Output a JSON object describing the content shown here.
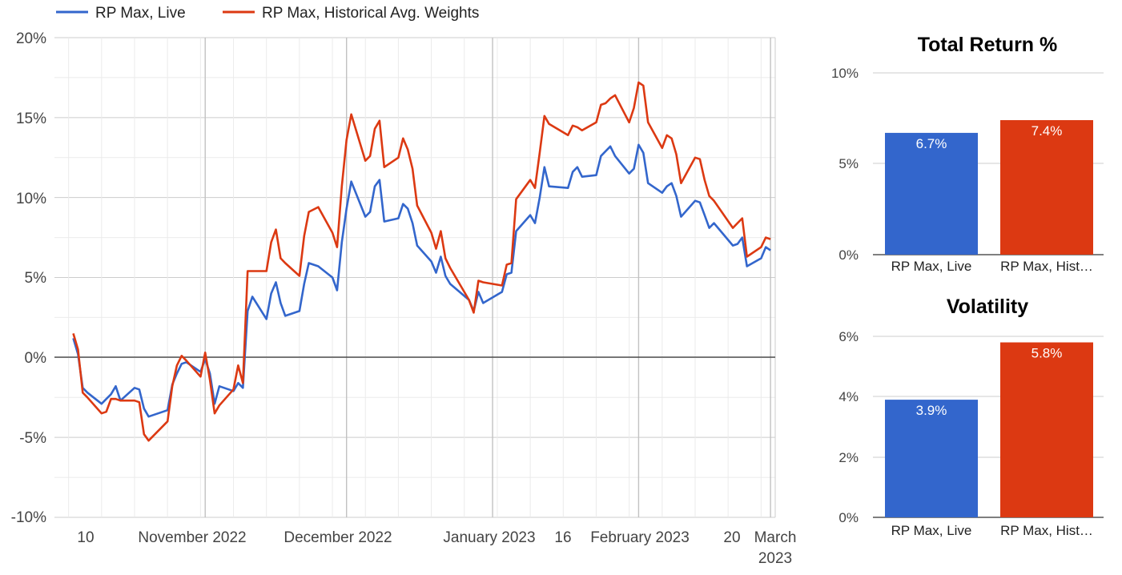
{
  "chart_data": [
    {
      "type": "line",
      "legend_position": "top-left",
      "x_tick_labels": [
        "10",
        "November 2022",
        "December 2022",
        "January 2023",
        "16",
        "February 2023",
        "20",
        "March",
        "2023"
      ],
      "y_tick_labels": [
        "20%",
        "15%",
        "10%",
        "5%",
        "0%",
        "-5%",
        "-10%"
      ],
      "ylim": [
        -10,
        20
      ],
      "grid": true,
      "series": [
        {
          "name": "RP Max, Live",
          "color": "#3366cc",
          "points": [
            [
              "2022-10-04",
              1.2
            ],
            [
              "2022-10-05",
              0.2
            ],
            [
              "2022-10-06",
              -1.9
            ],
            [
              "2022-10-07",
              -2.2
            ],
            [
              "2022-10-10",
              -2.9
            ],
            [
              "2022-10-11",
              -2.6
            ],
            [
              "2022-10-12",
              -2.3
            ],
            [
              "2022-10-13",
              -1.8
            ],
            [
              "2022-10-14",
              -2.7
            ],
            [
              "2022-10-17",
              -1.9
            ],
            [
              "2022-10-18",
              -2.0
            ],
            [
              "2022-10-19",
              -3.2
            ],
            [
              "2022-10-20",
              -3.7
            ],
            [
              "2022-10-24",
              -3.3
            ],
            [
              "2022-10-25",
              -1.7
            ],
            [
              "2022-10-26",
              -1.0
            ],
            [
              "2022-10-27",
              -0.4
            ],
            [
              "2022-10-28",
              -0.3
            ],
            [
              "2022-10-31",
              -0.9
            ],
            [
              "2022-11-01",
              -0.1
            ],
            [
              "2022-11-02",
              -1.0
            ],
            [
              "2022-11-03",
              -2.9
            ],
            [
              "2022-11-04",
              -1.8
            ],
            [
              "2022-11-07",
              -2.1
            ],
            [
              "2022-11-08",
              -1.6
            ],
            [
              "2022-11-09",
              -1.9
            ],
            [
              "2022-11-10",
              2.9
            ],
            [
              "2022-11-11",
              3.8
            ],
            [
              "2022-11-14",
              2.4
            ],
            [
              "2022-11-15",
              4.0
            ],
            [
              "2022-11-16",
              4.7
            ],
            [
              "2022-11-17",
              3.4
            ],
            [
              "2022-11-18",
              2.6
            ],
            [
              "2022-11-21",
              2.9
            ],
            [
              "2022-11-22",
              4.6
            ],
            [
              "2022-11-23",
              5.9
            ],
            [
              "2022-11-25",
              5.7
            ],
            [
              "2022-11-28",
              5.0
            ],
            [
              "2022-11-29",
              4.2
            ],
            [
              "2022-11-30",
              7.2
            ],
            [
              "2022-12-01",
              9.3
            ],
            [
              "2022-12-02",
              11.0
            ],
            [
              "2022-12-05",
              8.8
            ],
            [
              "2022-12-06",
              9.1
            ],
            [
              "2022-12-07",
              10.7
            ],
            [
              "2022-12-08",
              11.1
            ],
            [
              "2022-12-09",
              8.5
            ],
            [
              "2022-12-12",
              8.7
            ],
            [
              "2022-12-13",
              9.6
            ],
            [
              "2022-12-14",
              9.3
            ],
            [
              "2022-12-15",
              8.4
            ],
            [
              "2022-12-16",
              7.0
            ],
            [
              "2022-12-19",
              6.0
            ],
            [
              "2022-12-20",
              5.3
            ],
            [
              "2022-12-21",
              6.3
            ],
            [
              "2022-12-22",
              5.1
            ],
            [
              "2022-12-23",
              4.6
            ],
            [
              "2022-12-27",
              3.6
            ],
            [
              "2022-12-28",
              2.9
            ],
            [
              "2022-12-29",
              4.1
            ],
            [
              "2022-12-30",
              3.4
            ],
            [
              "2023-01-03",
              4.1
            ],
            [
              "2023-01-04",
              5.2
            ],
            [
              "2023-01-05",
              5.3
            ],
            [
              "2023-01-06",
              7.9
            ],
            [
              "2023-01-09",
              8.9
            ],
            [
              "2023-01-10",
              8.4
            ],
            [
              "2023-01-11",
              10.0
            ],
            [
              "2023-01-12",
              11.9
            ],
            [
              "2023-01-13",
              10.7
            ],
            [
              "2023-01-17",
              10.6
            ],
            [
              "2023-01-18",
              11.6
            ],
            [
              "2023-01-19",
              11.9
            ],
            [
              "2023-01-20",
              11.3
            ],
            [
              "2023-01-23",
              11.4
            ],
            [
              "2023-01-24",
              12.6
            ],
            [
              "2023-01-25",
              12.9
            ],
            [
              "2023-01-26",
              13.2
            ],
            [
              "2023-01-27",
              12.6
            ],
            [
              "2023-01-30",
              11.5
            ],
            [
              "2023-01-31",
              11.8
            ],
            [
              "2023-02-01",
              13.3
            ],
            [
              "2023-02-02",
              12.8
            ],
            [
              "2023-02-03",
              10.9
            ],
            [
              "2023-02-06",
              10.3
            ],
            [
              "2023-02-07",
              10.7
            ],
            [
              "2023-02-08",
              10.9
            ],
            [
              "2023-02-09",
              10.1
            ],
            [
              "2023-02-10",
              8.8
            ],
            [
              "2023-02-13",
              9.8
            ],
            [
              "2023-02-14",
              9.7
            ],
            [
              "2023-02-15",
              8.9
            ],
            [
              "2023-02-16",
              8.1
            ],
            [
              "2023-02-17",
              8.4
            ],
            [
              "2023-02-21",
              7.0
            ],
            [
              "2023-02-22",
              7.1
            ],
            [
              "2023-02-23",
              7.5
            ],
            [
              "2023-02-24",
              5.7
            ],
            [
              "2023-02-27",
              6.2
            ],
            [
              "2023-02-28",
              6.9
            ],
            [
              "2023-03-01",
              6.7
            ]
          ]
        },
        {
          "name": "RP Max, Historical Avg. Weights",
          "color": "#dc3912",
          "points": [
            [
              "2022-10-04",
              1.5
            ],
            [
              "2022-10-05",
              0.5
            ],
            [
              "2022-10-06",
              -2.2
            ],
            [
              "2022-10-07",
              -2.5
            ],
            [
              "2022-10-10",
              -3.5
            ],
            [
              "2022-10-11",
              -3.4
            ],
            [
              "2022-10-12",
              -2.6
            ],
            [
              "2022-10-13",
              -2.6
            ],
            [
              "2022-10-14",
              -2.7
            ],
            [
              "2022-10-17",
              -2.7
            ],
            [
              "2022-10-18",
              -2.8
            ],
            [
              "2022-10-19",
              -4.8
            ],
            [
              "2022-10-20",
              -5.2
            ],
            [
              "2022-10-24",
              -4.0
            ],
            [
              "2022-10-25",
              -1.8
            ],
            [
              "2022-10-26",
              -0.5
            ],
            [
              "2022-10-27",
              0.1
            ],
            [
              "2022-10-28",
              -0.2
            ],
            [
              "2022-10-31",
              -1.2
            ],
            [
              "2022-11-01",
              0.3
            ],
            [
              "2022-11-02",
              -1.4
            ],
            [
              "2022-11-03",
              -3.5
            ],
            [
              "2022-11-04",
              -3.0
            ],
            [
              "2022-11-07",
              -2.0
            ],
            [
              "2022-11-08",
              -0.5
            ],
            [
              "2022-11-09",
              -1.6
            ],
            [
              "2022-11-10",
              5.4
            ],
            [
              "2022-11-11",
              5.4
            ],
            [
              "2022-11-14",
              5.4
            ],
            [
              "2022-11-15",
              7.2
            ],
            [
              "2022-11-16",
              8.0
            ],
            [
              "2022-11-17",
              6.2
            ],
            [
              "2022-11-18",
              5.9
            ],
            [
              "2022-11-21",
              5.1
            ],
            [
              "2022-11-22",
              7.6
            ],
            [
              "2022-11-23",
              9.1
            ],
            [
              "2022-11-25",
              9.4
            ],
            [
              "2022-11-28",
              7.8
            ],
            [
              "2022-11-29",
              6.9
            ],
            [
              "2022-11-30",
              10.7
            ],
            [
              "2022-12-01",
              13.6
            ],
            [
              "2022-12-02",
              15.2
            ],
            [
              "2022-12-05",
              12.3
            ],
            [
              "2022-12-06",
              12.6
            ],
            [
              "2022-12-07",
              14.3
            ],
            [
              "2022-12-08",
              14.8
            ],
            [
              "2022-12-09",
              11.9
            ],
            [
              "2022-12-12",
              12.5
            ],
            [
              "2022-12-13",
              13.7
            ],
            [
              "2022-12-14",
              13.0
            ],
            [
              "2022-12-15",
              11.8
            ],
            [
              "2022-12-16",
              9.5
            ],
            [
              "2022-12-19",
              7.8
            ],
            [
              "2022-12-20",
              6.8
            ],
            [
              "2022-12-21",
              7.9
            ],
            [
              "2022-12-22",
              6.2
            ],
            [
              "2022-12-23",
              5.6
            ],
            [
              "2022-12-27",
              3.6
            ],
            [
              "2022-12-28",
              2.8
            ],
            [
              "2022-12-29",
              4.8
            ],
            [
              "2022-12-30",
              4.7
            ],
            [
              "2023-01-03",
              4.5
            ],
            [
              "2023-01-04",
              5.8
            ],
            [
              "2023-01-05",
              5.9
            ],
            [
              "2023-01-06",
              9.9
            ],
            [
              "2023-01-09",
              11.1
            ],
            [
              "2023-01-10",
              10.6
            ],
            [
              "2023-01-11",
              12.8
            ],
            [
              "2023-01-12",
              15.1
            ],
            [
              "2023-01-13",
              14.6
            ],
            [
              "2023-01-17",
              13.9
            ],
            [
              "2023-01-18",
              14.5
            ],
            [
              "2023-01-19",
              14.4
            ],
            [
              "2023-01-20",
              14.2
            ],
            [
              "2023-01-23",
              14.7
            ],
            [
              "2023-01-24",
              15.8
            ],
            [
              "2023-01-25",
              15.9
            ],
            [
              "2023-01-26",
              16.2
            ],
            [
              "2023-01-27",
              16.4
            ],
            [
              "2023-01-30",
              14.7
            ],
            [
              "2023-01-31",
              15.6
            ],
            [
              "2023-02-01",
              17.2
            ],
            [
              "2023-02-02",
              17.0
            ],
            [
              "2023-02-03",
              14.7
            ],
            [
              "2023-02-06",
              13.1
            ],
            [
              "2023-02-07",
              13.9
            ],
            [
              "2023-02-08",
              13.7
            ],
            [
              "2023-02-09",
              12.7
            ],
            [
              "2023-02-10",
              10.9
            ],
            [
              "2023-02-13",
              12.5
            ],
            [
              "2023-02-14",
              12.4
            ],
            [
              "2023-02-15",
              11.1
            ],
            [
              "2023-02-16",
              10.1
            ],
            [
              "2023-02-17",
              9.8
            ],
            [
              "2023-02-21",
              8.1
            ],
            [
              "2023-02-22",
              8.4
            ],
            [
              "2023-02-23",
              8.7
            ],
            [
              "2023-02-24",
              6.3
            ],
            [
              "2023-02-27",
              6.9
            ],
            [
              "2023-02-28",
              7.5
            ],
            [
              "2023-03-01",
              7.4
            ]
          ]
        }
      ]
    },
    {
      "type": "bar",
      "title": "Total Return %",
      "categories": [
        "RP Max, Live",
        "RP Max, Hist…"
      ],
      "values": [
        6.7,
        7.4
      ],
      "value_labels": [
        "6.7%",
        "7.4%"
      ],
      "colors": [
        "#3366cc",
        "#dc3912"
      ],
      "y_tick_labels": [
        "10%",
        "5%",
        "0%"
      ],
      "ylim": [
        0,
        10
      ]
    },
    {
      "type": "bar",
      "title": "Volatility",
      "categories": [
        "RP Max, Live",
        "RP Max, Hist…"
      ],
      "values": [
        3.9,
        5.8
      ],
      "value_labels": [
        "3.9%",
        "5.8%"
      ],
      "colors": [
        "#3366cc",
        "#dc3912"
      ],
      "y_tick_labels": [
        "6%",
        "4%",
        "2%",
        "0%"
      ],
      "ylim": [
        0,
        6
      ]
    }
  ]
}
